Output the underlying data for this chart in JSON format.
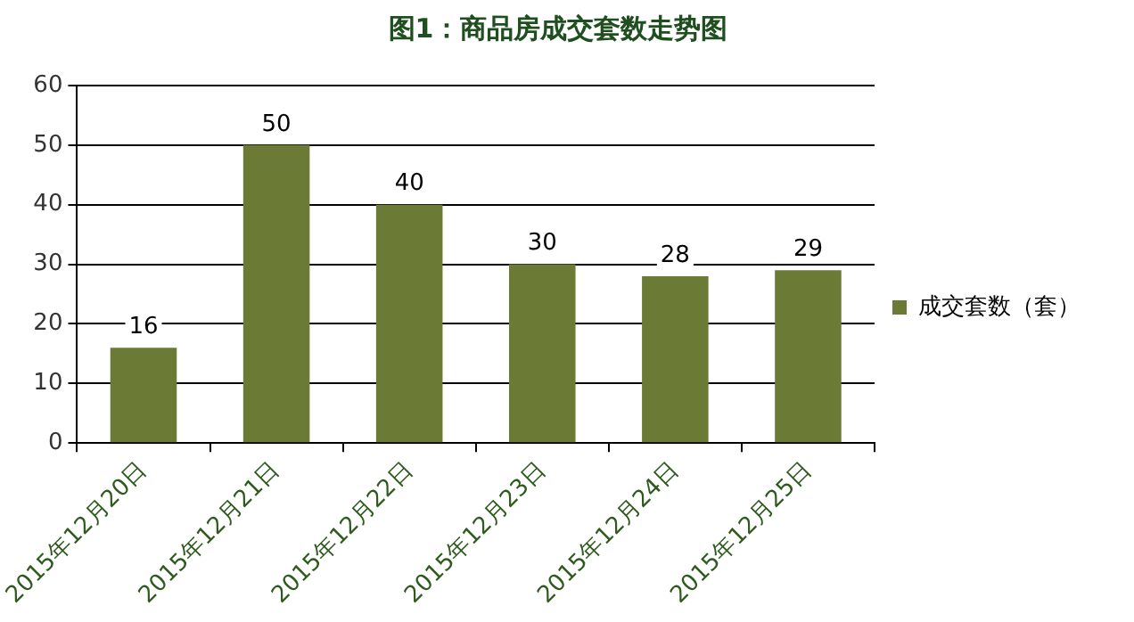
{
  "chart_data": {
    "type": "bar",
    "title": "图1：商品房成交套数走势图",
    "categories": [
      "2015年12月20日",
      "2015年12月21日",
      "2015年12月22日",
      "2015年12月23日",
      "2015年12月24日",
      "2015年12月25日"
    ],
    "series": [
      {
        "name": "成交套数（套）",
        "color": "#6b7b35",
        "values": [
          16,
          50,
          40,
          30,
          28,
          29
        ]
      }
    ],
    "ylim": [
      0,
      60
    ],
    "yticks": [
      0,
      10,
      20,
      30,
      40,
      50,
      60
    ],
    "grid": "y",
    "legend": "right",
    "data_labels": true
  }
}
